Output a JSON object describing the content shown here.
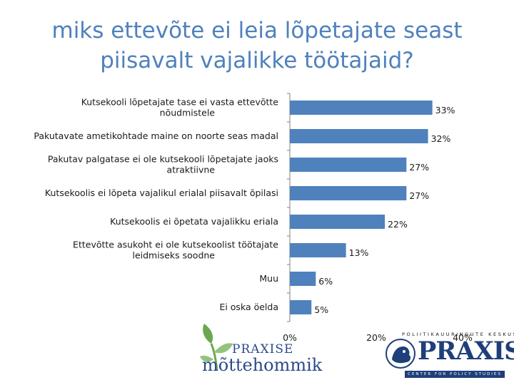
{
  "title_lines": [
    "miks ettevõte ei leia lõpetajate seast",
    "piisavalt vajalikke töötajaid?"
  ],
  "chart_data": {
    "type": "bar",
    "orientation": "horizontal",
    "categories": [
      [
        "Kutsekooli lõpetajate tase ei vasta ettevõtte",
        "nõudmistele"
      ],
      [
        "Pakutavate ametikohtade maine on noorte seas madal"
      ],
      [
        "Pakutav palgatase ei ole kutsekooli lõpetajate jaoks",
        "atraktiivne"
      ],
      [
        "Kutsekoolis ei lõpeta vajalikul  erialal piisavalt õpilasi"
      ],
      [
        "Kutsekoolis ei õpetata vajalikku eriala"
      ],
      [
        "Ettevõtte asukoht ei ole kutsekoolist töötajate",
        "leidmiseks soodne"
      ],
      [
        "Muu"
      ],
      [
        "Ei oska öelda"
      ]
    ],
    "values": [
      33,
      32,
      27,
      27,
      22,
      13,
      6,
      5
    ],
    "data_labels": [
      "33%",
      "32%",
      "27%",
      "27%",
      "22%",
      "13%",
      "6%",
      "5%"
    ],
    "xlim": [
      0,
      40
    ],
    "x_ticks": [
      0,
      20,
      40
    ],
    "x_tick_labels": [
      "0%",
      "20%",
      "40%"
    ],
    "bar_color": "#4f81bd",
    "grid": false,
    "legend": "none"
  },
  "logos": {
    "left": {
      "line1": "PRAXISE",
      "line2": "mõttehommik"
    },
    "right": {
      "top": "POLIITIKAUURINGUTE KESKUS",
      "word": "PRAXIS",
      "bottom": "CENTER FOR POLICY STUDIES"
    }
  },
  "colors": {
    "title": "#4f81bd",
    "bars": "#4f81bd",
    "logo_blue": "#1f3f7a",
    "leaf_green": "#6aa84f"
  }
}
